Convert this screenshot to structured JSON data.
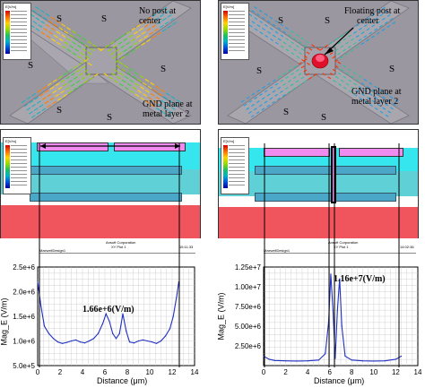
{
  "top_left": {
    "note": "No post at center",
    "note_lines": [
      "No post at",
      "center"
    ],
    "gnd_lines": [
      "GND plane at",
      "metal layer 2"
    ],
    "s": "S",
    "legend_title": "E[V/m]"
  },
  "top_right": {
    "note_lines": [
      "Floating post at",
      "center"
    ],
    "gnd_lines": [
      "GND plane at",
      "metal layer 2"
    ],
    "s": "S",
    "legend_title": "E[V/m]"
  },
  "mid_left": {
    "legend_title": "E[V/m]"
  },
  "mid_right": {
    "legend_title": "E[V/m]"
  },
  "plot_left": {
    "header_company": "Ansoft Corporation",
    "header_plot": "XY Plot 1",
    "header_design": "MaxwellDesign1",
    "header_time": "15:11:33",
    "peak_label": "1.66e+6(V/m)",
    "ylabel": "Mag_E (V/m)",
    "xlabel": "Distance (μm)",
    "yticks": [
      "2.5e+6",
      "2.0e+6",
      "1.5e+6",
      "1.0e+6",
      "5.0e+5"
    ],
    "xticks": [
      "0",
      "2",
      "4",
      "6",
      "8",
      "10",
      "12",
      "14"
    ]
  },
  "plot_right": {
    "header_company": "Ansoft Corporation",
    "header_plot": "XY Plot 1",
    "header_design": "MaxwellDesign1",
    "header_time": "14:02:36",
    "peak_label": "1.16e+7(V/m)",
    "ylabel": "Mag_E (V/m)",
    "xlabel": "Distance (μm)",
    "yticks": [
      "1.25e+7",
      "1.00e+7",
      "7.50e+6",
      "5.00e+6",
      "2.50e+6"
    ],
    "xticks": [
      "0",
      "2",
      "4",
      "6",
      "8",
      "10",
      "12",
      "14"
    ]
  },
  "chart_data": [
    {
      "type": "line",
      "xlabel": "Distance (μm)",
      "ylabel": "Mag_E (V/m)",
      "xlim": [
        0,
        14
      ],
      "ylim": [
        500000,
        2500000
      ],
      "annotation": "1.66e+6(V/m)",
      "x": [
        0,
        0.3,
        0.6,
        1.0,
        1.4,
        1.8,
        2.2,
        2.6,
        3.0,
        3.4,
        3.8,
        4.2,
        4.6,
        5.0,
        5.4,
        5.8,
        6.1,
        6.4,
        6.7,
        7.0,
        7.3,
        7.6,
        7.9,
        8.2,
        8.6,
        9.0,
        9.4,
        9.8,
        10.2,
        10.6,
        11.0,
        11.4,
        11.8,
        12.1,
        12.4,
        12.6
      ],
      "y": [
        2200000,
        1700000,
        1300000,
        1150000,
        1050000,
        980000,
        950000,
        970000,
        1000000,
        1020000,
        980000,
        960000,
        1000000,
        1050000,
        1150000,
        1350000,
        1550000,
        1400000,
        1150000,
        1050000,
        1150000,
        1550000,
        1200000,
        980000,
        960000,
        1000000,
        1020000,
        1000000,
        980000,
        950000,
        1000000,
        1100000,
        1250000,
        1500000,
        1900000,
        2200000
      ]
    },
    {
      "type": "line",
      "xlabel": "Distance (μm)",
      "ylabel": "Mag_E (V/m)",
      "xlim": [
        0,
        14
      ],
      "ylim": [
        0,
        12500000
      ],
      "annotation": "1.16e+7(V/m)",
      "x": [
        0,
        0.5,
        1.0,
        2.0,
        3.0,
        4.0,
        5.0,
        5.6,
        5.9,
        6.1,
        6.3,
        6.5,
        6.7,
        6.9,
        7.1,
        7.4,
        8.0,
        9.0,
        10.0,
        11.0,
        12.0,
        12.5
      ],
      "y": [
        1200000,
        800000,
        650000,
        600000,
        580000,
        600000,
        700000,
        1500000,
        5500000,
        11600000,
        7000000,
        900000,
        7000000,
        11000000,
        5000000,
        1200000,
        700000,
        600000,
        580000,
        600000,
        800000,
        1200000
      ]
    }
  ]
}
